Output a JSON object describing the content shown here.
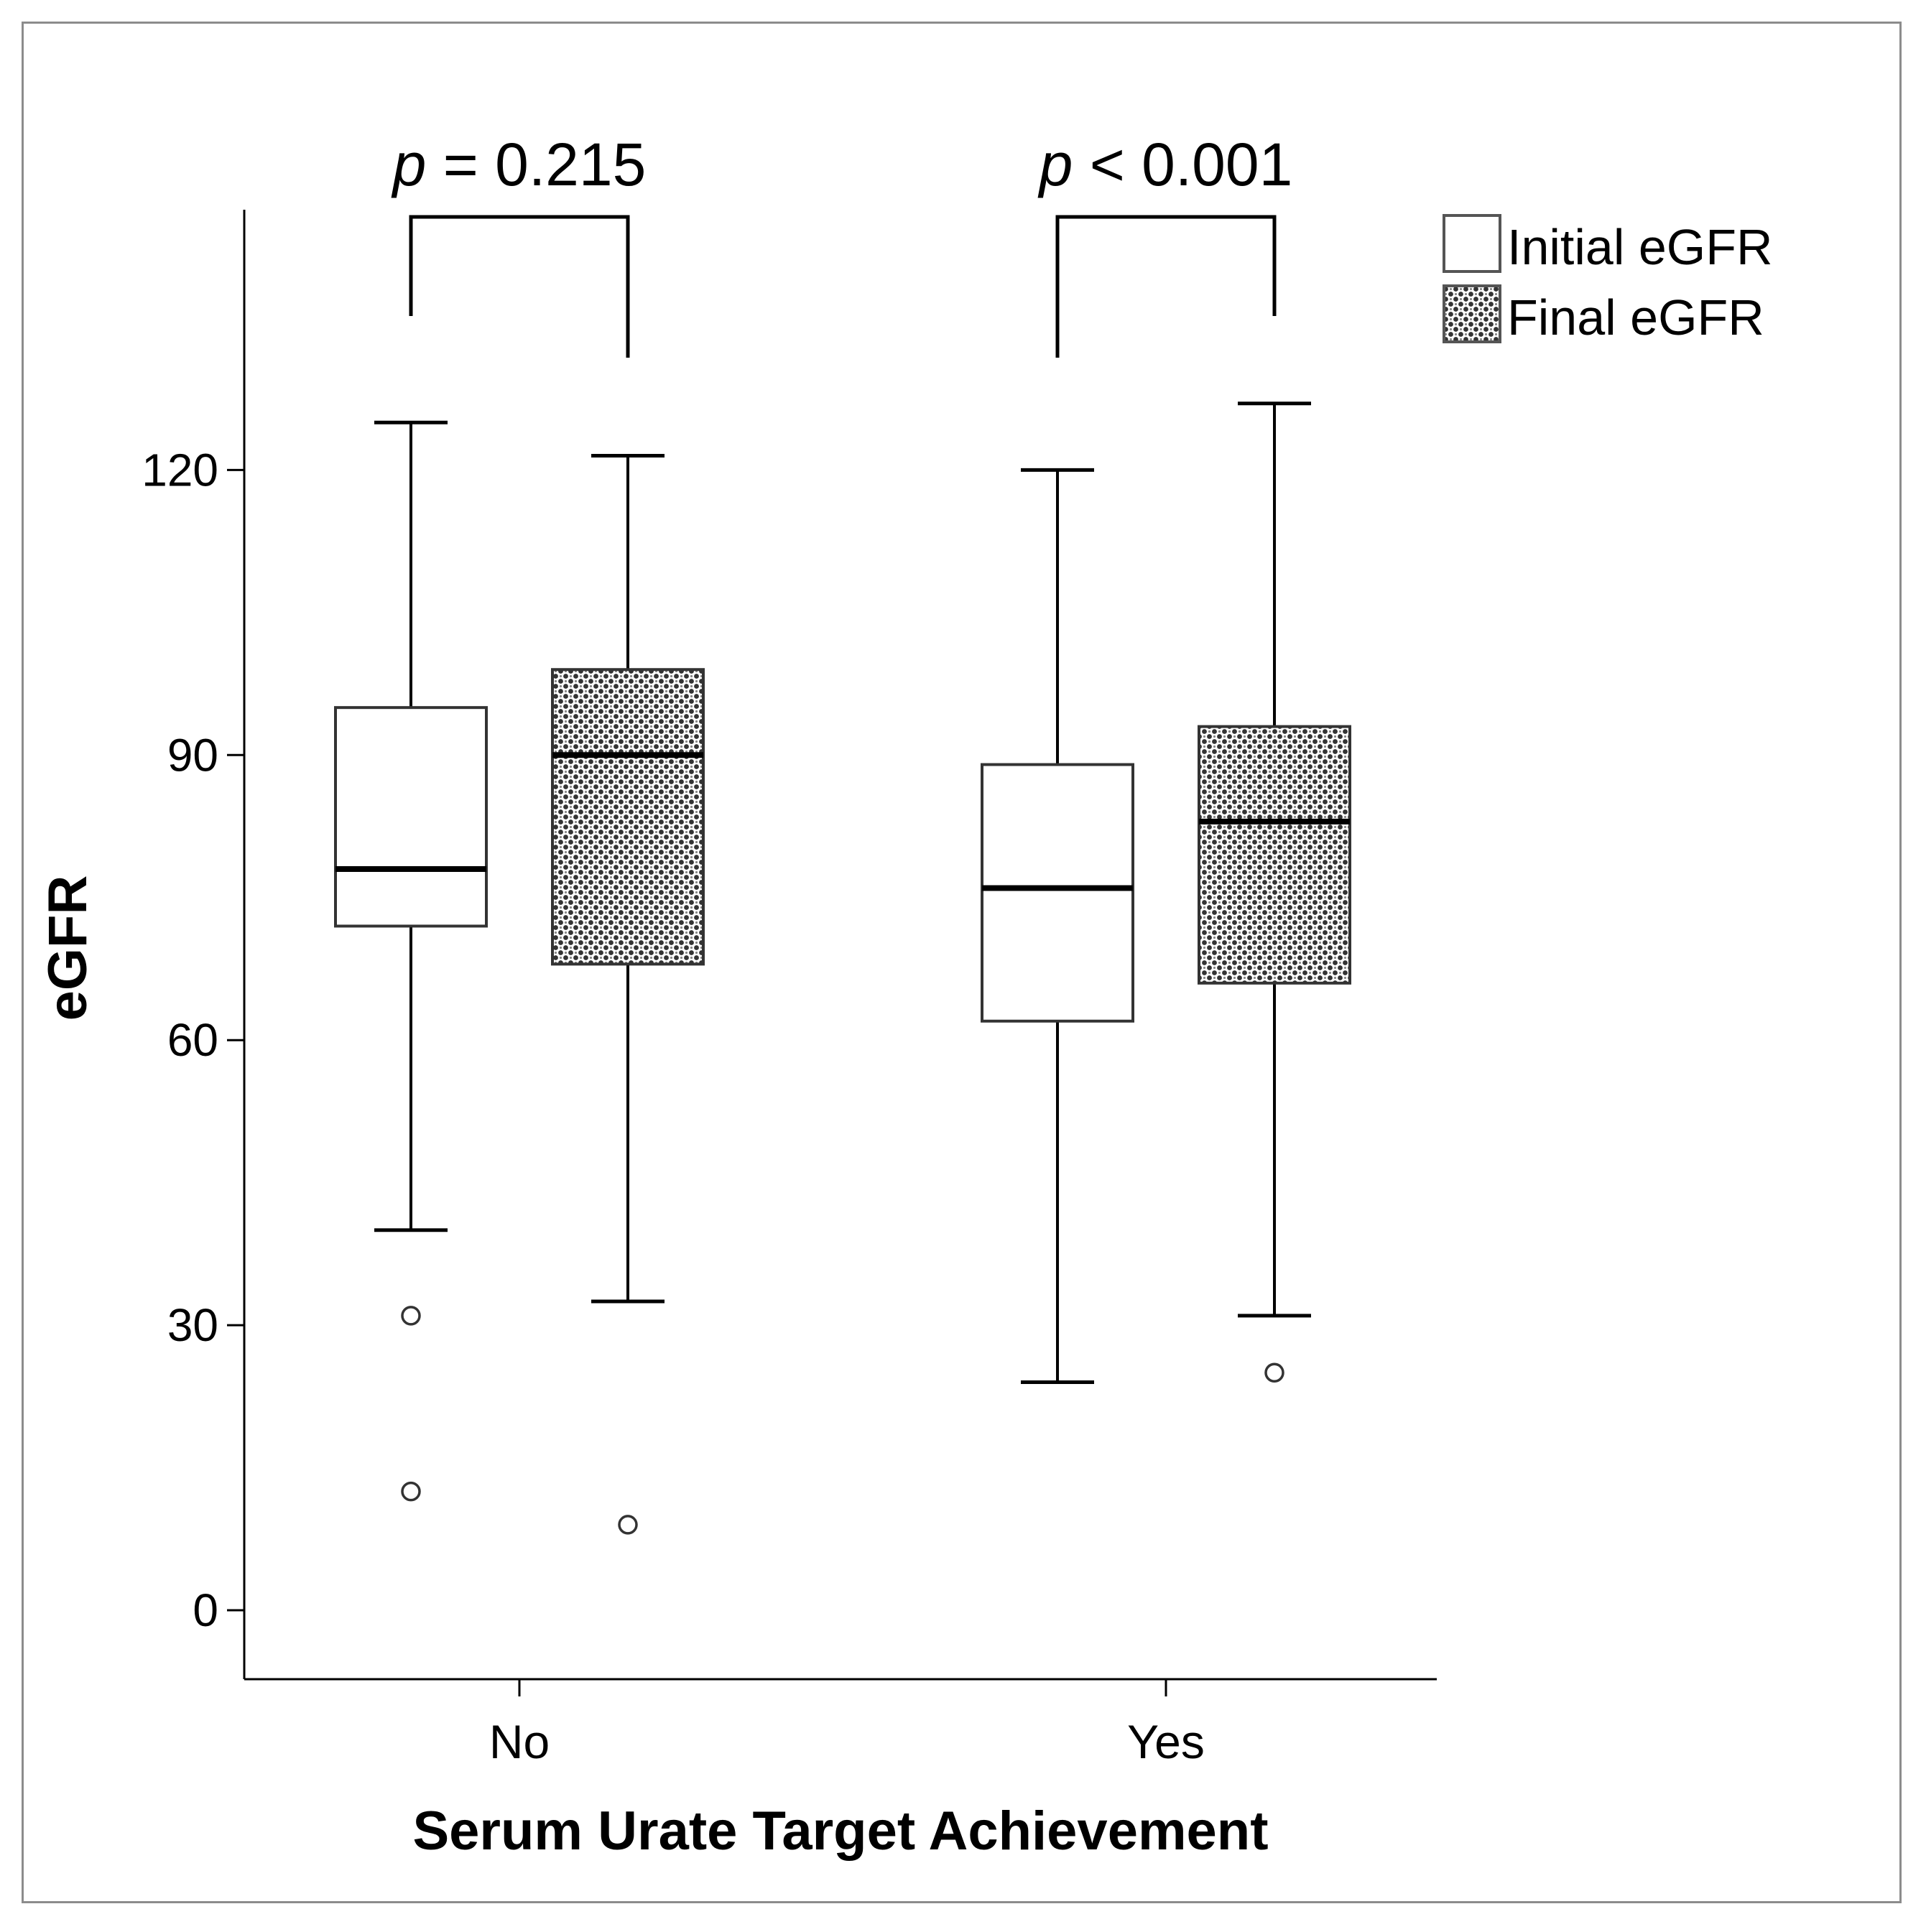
{
  "chart_data": {
    "type": "box",
    "title": "",
    "xlabel": "Serum Urate Target Achievement",
    "ylabel": "eGFR",
    "ylim": [
      -8,
      148
    ],
    "yticks": [
      0,
      30,
      60,
      90,
      120
    ],
    "grid": false,
    "legend_position": "top-right",
    "categories": [
      "No",
      "Yes"
    ],
    "series": [
      {
        "name": "Initial eGFR",
        "fill": "plain",
        "boxes": [
          {
            "category": "No",
            "whisker_low": 40,
            "q1": 72,
            "median": 78,
            "q3": 95,
            "whisker_high": 125,
            "outliers": [
              31,
              12.5
            ]
          },
          {
            "category": "Yes",
            "whisker_low": 24,
            "q1": 62,
            "median": 76,
            "q3": 89,
            "whisker_high": 120,
            "outliers": []
          }
        ]
      },
      {
        "name": "Final eGFR",
        "fill": "crosshatch",
        "boxes": [
          {
            "category": "No",
            "whisker_low": 32.5,
            "q1": 68,
            "median": 90,
            "q3": 99,
            "whisker_high": 121.5,
            "outliers": [
              9
            ]
          },
          {
            "category": "Yes",
            "whisker_low": 31,
            "q1": 66,
            "median": 83,
            "q3": 93,
            "whisker_high": 127,
            "outliers": [
              25
            ]
          }
        ]
      }
    ],
    "annotations": [
      {
        "category": "No",
        "p_symbol": "p",
        "p_text": " = 0.215"
      },
      {
        "category": "Yes",
        "p_symbol": "p",
        "p_text": " < 0.001"
      }
    ]
  }
}
